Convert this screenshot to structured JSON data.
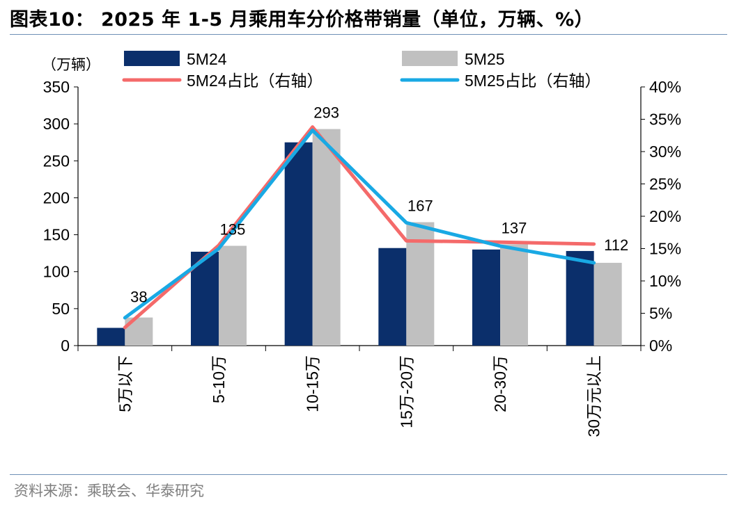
{
  "header": {
    "title": "图表10： 2025 年 1-5 月乘用车分价格带销量（单位，万辆、%）"
  },
  "footer": {
    "source": "资料来源：乘联会、华泰研究"
  },
  "chart_data": {
    "type": "bar",
    "unit_label": "（万辆）",
    "categories": [
      "5万以下",
      "5-10万",
      "10-15万",
      "15万-20万",
      "20-30万",
      "30万元以上"
    ],
    "series": [
      {
        "name": "5M24",
        "type": "bar",
        "axis": "left",
        "color": "#0b2f6b",
        "values": [
          24,
          127,
          275,
          132,
          130,
          128
        ]
      },
      {
        "name": "5M25",
        "type": "bar",
        "axis": "left",
        "color": "#c0c0c0",
        "values": [
          38,
          135,
          293,
          167,
          137,
          112
        ]
      },
      {
        "name": "5M24占比（右轴）",
        "type": "line",
        "axis": "right",
        "color": "#f46a6a",
        "values": [
          2.8,
          15.5,
          33.8,
          16.2,
          16.0,
          15.7
        ]
      },
      {
        "name": "5M25占比（右轴）",
        "type": "line",
        "axis": "right",
        "color": "#19a9e4",
        "values": [
          4.3,
          15.0,
          33.3,
          19.0,
          15.4,
          12.8
        ]
      }
    ],
    "data_labels": [
      "38",
      "135",
      "293",
      "167",
      "137",
      "112"
    ],
    "y_left": {
      "min": 0,
      "max": 350,
      "ticks": [
        "0",
        "50",
        "100",
        "150",
        "200",
        "250",
        "300",
        "350"
      ]
    },
    "y_right": {
      "min": 0,
      "max": 40,
      "ticks": [
        "0%",
        "5%",
        "10%",
        "15%",
        "20%",
        "25%",
        "30%",
        "35%",
        "40%"
      ]
    },
    "grid": false,
    "legend_position": "top"
  }
}
